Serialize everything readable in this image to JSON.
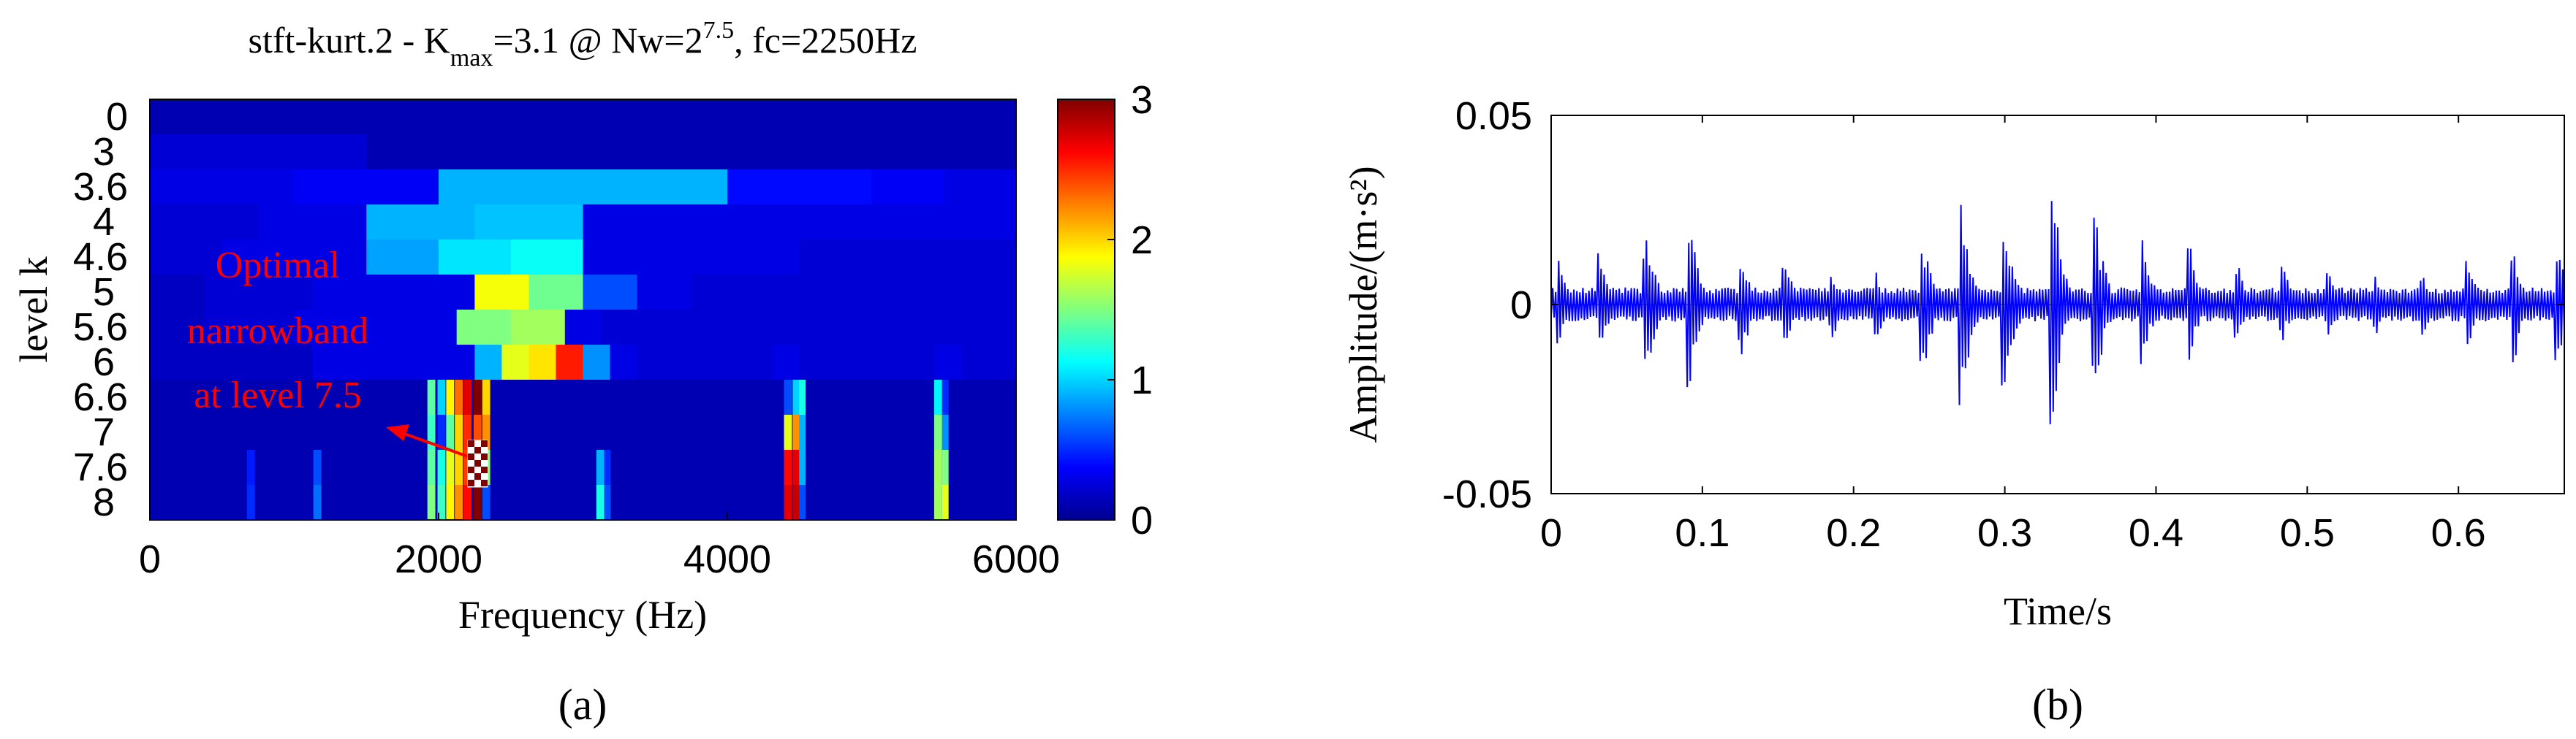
{
  "panels": {
    "a": {
      "caption": "(a)",
      "title": {
        "prefix": "stft-kurt.2 - K",
        "sub": "max",
        "mid": "=3.1 @ Nw=2",
        "sup": "7.5",
        "suffix": ", fc=2250Hz"
      },
      "annotation": [
        "Optimal",
        "narrowband",
        "at level 7.5"
      ]
    },
    "b": {
      "caption": "(b)"
    }
  },
  "colors": {
    "axes": "#000000",
    "signal": "#0000ff",
    "annotation": "#ff0000"
  },
  "chart_data": [
    {
      "type": "heatmap",
      "xlabel": "Frequency (Hz)",
      "ylabel": "level k",
      "xlim": [
        0,
        6000
      ],
      "xticks": [
        "0",
        "2000",
        "4000",
        "6000"
      ],
      "ytick_labels": [
        "0",
        "3",
        "3.6",
        "4",
        "4.6",
        "5",
        "5.6",
        "6",
        "6.6",
        "7",
        "7.6",
        "8"
      ],
      "colorbar": {
        "range": [
          0,
          3
        ],
        "ticks": [
          "0",
          "1",
          "2",
          "3"
        ],
        "colormap": "jet"
      },
      "max_kurtosis": 3.1,
      "optimal_level": 7.5,
      "optimal_fc_hz": 2250,
      "rows": [
        {
          "level": "0",
          "values": [
            0.15
          ]
        },
        {
          "level": "3",
          "values": [
            0.25,
            0.25,
            0.15,
            0.15,
            0.15,
            0.15,
            0.15,
            0.15
          ]
        },
        {
          "level": "3.6",
          "values": [
            0.3,
            0.3,
            0.35,
            0.35,
            0.9,
            0.9,
            0.9,
            0.9,
            0.4,
            0.4,
            0.35,
            0.3
          ]
        },
        {
          "level": "4",
          "values": [
            0.25,
            0.25,
            0.3,
            0.3,
            0.9,
            0.9,
            0.95,
            0.95,
            0.3,
            0.3,
            0.3,
            0.3,
            0.3,
            0.3,
            0.3,
            0.3
          ]
        },
        {
          "level": "4.6",
          "values": [
            0.25,
            0.25,
            0.3,
            0.3,
            0.3,
            0.3,
            0.85,
            0.85,
            1.05,
            1.05,
            1.15,
            1.15,
            0.3,
            0.3,
            0.3,
            0.3,
            0.3,
            0.3,
            0.25,
            0.25,
            0.25,
            0.25,
            0.25,
            0.25
          ]
        },
        {
          "level": "5",
          "values": [
            0.2,
            0.2,
            0.25,
            0.25,
            0.25,
            0.25,
            0.3,
            0.3,
            0.3,
            0.3,
            0.3,
            0.3,
            1.85,
            1.85,
            1.45,
            1.45,
            0.6,
            0.6,
            0.3,
            0.3,
            0.25,
            0.25,
            0.25,
            0.25,
            0.25,
            0.25,
            0.25,
            0.25,
            0.25,
            0.25,
            0.25,
            0.25
          ]
        },
        {
          "level": "5.6",
          "values": [
            0.2,
            0.2,
            0.2,
            0.25,
            0.25,
            0.25,
            0.25,
            0.25,
            0.3,
            0.3,
            0.3,
            0.3,
            0.3,
            0.3,
            0.3,
            0.3,
            0.3,
            1.5,
            1.5,
            1.5,
            1.6,
            1.6,
            1.6,
            0.3,
            0.3,
            0.25,
            0.25,
            0.25,
            0.25,
            0.25,
            0.25,
            0.25,
            0.25,
            0.25,
            0.25,
            0.25,
            0.25,
            0.25,
            0.25,
            0.25,
            0.25,
            0.25,
            0.25,
            0.25,
            0.25,
            0.25,
            0.25,
            0.25
          ]
        },
        {
          "level": "6",
          "values": [
            0.2,
            0.2,
            0.2,
            0.2,
            0.2,
            0.2,
            0.2,
            0.2,
            0.2,
            0.2,
            0.2,
            0.2,
            0.3,
            0.3,
            0.3,
            0.3,
            0.3,
            0.3,
            0.3,
            0.3,
            0.3,
            0.3,
            0.3,
            0.3,
            0.9,
            0.9,
            1.8,
            1.8,
            1.95,
            1.95,
            2.55,
            2.55,
            0.8,
            0.8,
            0.3,
            0.3,
            0.25,
            0.25,
            0.25,
            0.25,
            0.25,
            0.25,
            0.25,
            0.25,
            0.25,
            0.25,
            0.3,
            0.3,
            0.25,
            0.25,
            0.25,
            0.25,
            0.25,
            0.25,
            0.25,
            0.25,
            0.25,
            0.25,
            0.3,
            0.3,
            0.25,
            0.25,
            0.25,
            0.25
          ]
        },
        {
          "level": "6.6",
          "values": [
            0.15,
            0.15,
            0.15,
            0.15,
            0.15,
            0.15,
            0.15,
            0.15,
            0.15,
            0.15,
            0.15,
            0.15,
            0.15,
            0.15,
            0.15,
            0.15,
            0.15,
            0.15,
            0.15,
            0.15,
            0.15,
            0.15,
            0.15,
            0.15,
            0.15,
            0.15,
            0.15,
            0.15,
            0.15,
            0.15,
            0.15,
            0.15,
            0.15,
            0.15,
            0.15,
            0.15,
            0.15,
            0.15,
            0.15,
            0.15,
            0.15,
            0.15,
            0.15,
            0.15,
            0.15,
            0.15,
            0.15,
            0.15,
            0.15,
            0.15,
            0.15,
            0.15,
            0.15,
            0.15,
            0.15,
            0.15,
            0.15,
            0.15,
            0.15,
            0.15,
            0.15,
            0.15,
            0.15,
            0.15,
            0.15,
            0.15,
            0.15,
            0.15,
            0.15,
            0.15,
            0.15,
            0.15,
            0.15,
            0.15,
            0.15,
            0.15,
            0.15,
            0.15,
            0.15,
            0.15,
            0.15,
            0.15,
            0.15,
            0.15,
            0.15,
            0.15,
            0.15,
            0.15,
            0.15,
            0.15,
            0.15,
            0.15,
            0.15,
            0.15,
            0.15,
            0.15
          ]
        },
        {
          "level": "7",
          "values": [
            0.15
          ]
        },
        {
          "level": "7.6",
          "values": [
            0.15
          ]
        },
        {
          "level": "8",
          "values": [
            0.15
          ]
        }
      ],
      "peaks": [
        {
          "freq_hz": 1950,
          "width_hz": 55,
          "levels": [
            "6.6",
            "7",
            "7.6",
            "8"
          ],
          "values": [
            1.4,
            1.3,
            1.4,
            1.5
          ]
        },
        {
          "freq_hz": 2020,
          "width_hz": 55,
          "levels": [
            "6.6",
            "7",
            "7.6",
            "8"
          ],
          "values": [
            1.0,
            0.5,
            1.2,
            1.3
          ]
        },
        {
          "freq_hz": 2080,
          "width_hz": 55,
          "levels": [
            "6.6",
            "7",
            "7.6",
            "8"
          ],
          "values": [
            1.9,
            1.4,
            1.8,
            1.9
          ]
        },
        {
          "freq_hz": 2140,
          "width_hz": 55,
          "levels": [
            "6.6",
            "7",
            "7.6",
            "8"
          ],
          "values": [
            2.3,
            2.0,
            2.0,
            2.2
          ]
        },
        {
          "freq_hz": 2200,
          "width_hz": 55,
          "levels": [
            "6.6",
            "7",
            "7.6",
            "8"
          ],
          "values": [
            2.7,
            2.5,
            2.45,
            2.6
          ]
        },
        {
          "freq_hz": 2270,
          "width_hz": 55,
          "levels": [
            "6.6",
            "7",
            "7.6",
            "8"
          ],
          "values": [
            3.0,
            2.4,
            3.1,
            3.0
          ]
        },
        {
          "freq_hz": 2330,
          "width_hz": 55,
          "levels": [
            "6.6",
            "7",
            "7.6",
            "8"
          ],
          "values": [
            2.0,
            2.2,
            1.5,
            0.6
          ]
        },
        {
          "freq_hz": 4420,
          "width_hz": 55,
          "levels": [
            "6.6",
            "7",
            "7.6",
            "8"
          ],
          "values": [
            0.6,
            1.8,
            2.6,
            2.7
          ]
        },
        {
          "freq_hz": 4480,
          "width_hz": 55,
          "levels": [
            "6.6",
            "7",
            "7.6",
            "8"
          ],
          "values": [
            1.0,
            2.2,
            2.7,
            2.8
          ]
        },
        {
          "freq_hz": 4520,
          "width_hz": 45,
          "levels": [
            "6.6",
            "7",
            "7.6",
            "8"
          ],
          "values": [
            1.2,
            0.9,
            0.9,
            0.6
          ]
        },
        {
          "freq_hz": 3120,
          "width_hz": 55,
          "levels": [
            "7.6",
            "8"
          ],
          "values": [
            0.9,
            1.2
          ]
        },
        {
          "freq_hz": 3170,
          "width_hz": 45,
          "levels": [
            "7.6",
            "8"
          ],
          "values": [
            0.5,
            0.6
          ]
        },
        {
          "freq_hz": 5460,
          "width_hz": 55,
          "levels": [
            "6.6",
            "7",
            "7.6",
            "8"
          ],
          "values": [
            1.1,
            1.5,
            1.6,
            1.6
          ]
        },
        {
          "freq_hz": 5510,
          "width_hz": 45,
          "levels": [
            "6.6",
            "7",
            "7.6",
            "8"
          ],
          "values": [
            0.5,
            0.8,
            1.5,
            1.8
          ]
        },
        {
          "freq_hz": 1160,
          "width_hz": 55,
          "levels": [
            "7.6",
            "8"
          ],
          "values": [
            0.6,
            0.7
          ]
        },
        {
          "freq_hz": 700,
          "width_hz": 55,
          "levels": [
            "7.6",
            "8"
          ],
          "values": [
            0.45,
            0.5
          ]
        }
      ]
    },
    {
      "type": "line",
      "xlabel": "Time/s",
      "ylabel": "Amplitude/(m·s²)",
      "xlim": [
        0,
        0.67
      ],
      "ylim": [
        -0.05,
        0.05
      ],
      "xticks": [
        "0",
        "0.1",
        "0.2",
        "0.3",
        "0.4",
        "0.5",
        "0.6"
      ],
      "yticks": [
        "-0.05",
        "0",
        "0.05"
      ],
      "series": [
        {
          "sample_spacing_s": 0.002,
          "envelope": {
            "base": 0.003,
            "noise": 0.0015
          },
          "bursts": [
            {
              "t": 0.005,
              "amp": 0.013
            },
            {
              "t": 0.033,
              "amp": 0.014
            },
            {
              "t": 0.063,
              "amp": 0.022
            },
            {
              "t": 0.092,
              "amp": 0.023
            },
            {
              "t": 0.126,
              "amp": 0.016
            },
            {
              "t": 0.155,
              "amp": 0.012
            },
            {
              "t": 0.186,
              "amp": 0.01
            },
            {
              "t": 0.216,
              "amp": 0.009
            },
            {
              "t": 0.246,
              "amp": 0.021
            },
            {
              "t": 0.272,
              "amp": 0.029
            },
            {
              "t": 0.3,
              "amp": 0.028
            },
            {
              "t": 0.332,
              "amp": 0.034
            },
            {
              "t": 0.36,
              "amp": 0.027
            },
            {
              "t": 0.392,
              "amp": 0.017
            },
            {
              "t": 0.423,
              "amp": 0.015
            },
            {
              "t": 0.454,
              "amp": 0.012
            },
            {
              "t": 0.484,
              "amp": 0.011
            },
            {
              "t": 0.515,
              "amp": 0.009
            },
            {
              "t": 0.546,
              "amp": 0.008
            },
            {
              "t": 0.577,
              "amp": 0.009
            },
            {
              "t": 0.607,
              "amp": 0.012
            },
            {
              "t": 0.637,
              "amp": 0.016
            },
            {
              "t": 0.666,
              "amp": 0.019
            }
          ]
        }
      ]
    }
  ]
}
